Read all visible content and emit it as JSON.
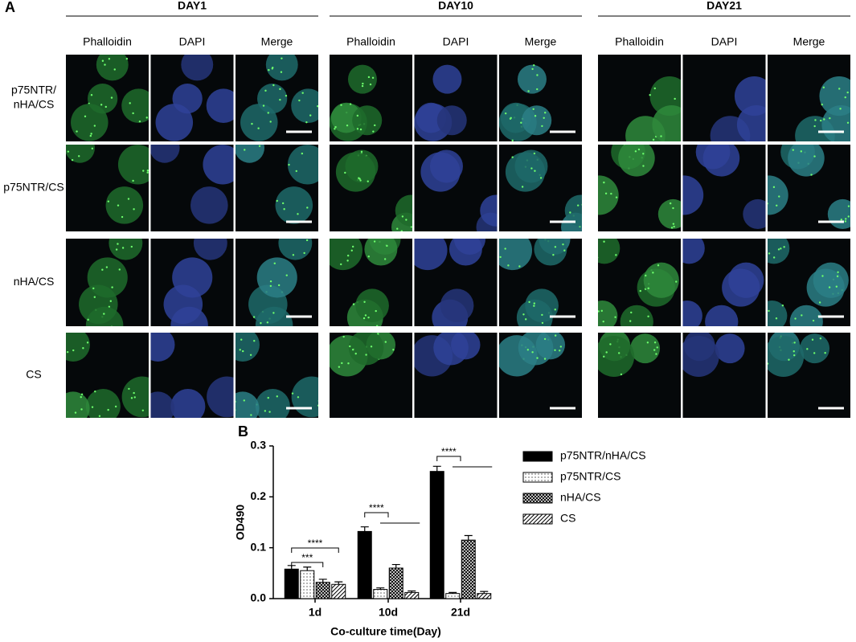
{
  "panel_a": {
    "label": "A",
    "groups": [
      "DAY1",
      "DAY10",
      "DAY21"
    ],
    "channels": [
      "Phalloidin",
      "DAPI",
      "Merge"
    ],
    "rows": [
      [
        "p75NTR/",
        "nHA/CS"
      ],
      [
        "p75NTR/CS"
      ],
      [
        "nHA/CS"
      ],
      [
        "CS"
      ]
    ]
  },
  "chart_data": {
    "type": "bar",
    "label": "B",
    "xlabel": "Co-culture time(Day)",
    "ylabel": "OD490",
    "categories": [
      "1d",
      "10d",
      "21d"
    ],
    "series": [
      {
        "name": "p75NTR/nHA/CS",
        "color": "#000000",
        "pattern": "solid",
        "values": [
          0.058,
          0.132,
          0.25
        ],
        "errors": [
          0.007,
          0.009,
          0.01
        ]
      },
      {
        "name": "p75NTR/CS",
        "color": "#ffffff",
        "pattern": "dots",
        "values": [
          0.055,
          0.018,
          0.01
        ],
        "errors": [
          0.007,
          0.003,
          0.002
        ]
      },
      {
        "name": "nHA/CS",
        "color": "#ffffff",
        "pattern": "crosshatch",
        "values": [
          0.032,
          0.06,
          0.115
        ],
        "errors": [
          0.006,
          0.007,
          0.009
        ]
      },
      {
        "name": "CS",
        "color": "#ffffff",
        "pattern": "diagonal",
        "values": [
          0.028,
          0.012,
          0.01
        ],
        "errors": [
          0.005,
          0.003,
          0.004
        ]
      }
    ],
    "ylim": [
      0,
      0.3
    ],
    "yticks": [
      {
        "value": 0,
        "label": "0.0"
      },
      0.1,
      0.2,
      0.3
    ],
    "annotations": [
      "****",
      "***",
      "****",
      "****"
    ]
  }
}
